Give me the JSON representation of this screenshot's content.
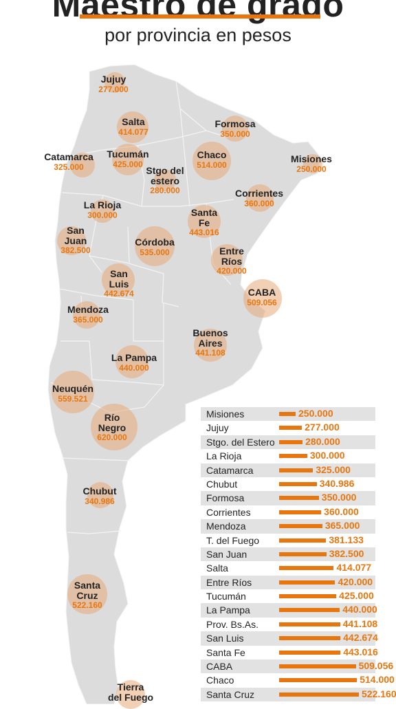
{
  "header": {
    "title": "Maestro de grado",
    "subtitle": "por provincia en pesos"
  },
  "colors": {
    "accent": "#e8760f",
    "bubble": "#e8aa78",
    "map": "#dcdcdc",
    "row_stripe": "#e2e2e2"
  },
  "chart_data": [
    {
      "type": "bubble-map",
      "unit": "pesos",
      "provinces": [
        {
          "name": "Jujuy",
          "value": 277000,
          "label": "277.000"
        },
        {
          "name": "Salta",
          "value": 414077,
          "label": "414.077"
        },
        {
          "name": "Formosa",
          "value": 350000,
          "label": "350.000"
        },
        {
          "name": "Catamarca",
          "value": 325000,
          "label": "325.000"
        },
        {
          "name": "Tucumán",
          "value": 425000,
          "label": "425.000"
        },
        {
          "name": "Chaco",
          "value": 514000,
          "label": "514.000"
        },
        {
          "name": "Misiones",
          "value": 250000,
          "label": "250.000"
        },
        {
          "name": "Stgo del estero",
          "value": 280000,
          "label": "280.000"
        },
        {
          "name": "Corrientes",
          "value": 360000,
          "label": "360.000"
        },
        {
          "name": "La Rioja",
          "value": 300000,
          "label": "300.000"
        },
        {
          "name": "Santa Fe",
          "value": 443016,
          "label": "443.016"
        },
        {
          "name": "San Juan",
          "value": 382500,
          "label": "382.500"
        },
        {
          "name": "Córdoba",
          "value": 535000,
          "label": "535.000"
        },
        {
          "name": "Entre Ríos",
          "value": 420000,
          "label": "420.000"
        },
        {
          "name": "San Luis",
          "value": 442674,
          "label": "442.674"
        },
        {
          "name": "CABA",
          "value": 509056,
          "label": "509.056"
        },
        {
          "name": "Mendoza",
          "value": 365000,
          "label": "365.000"
        },
        {
          "name": "Buenos Aires",
          "value": 441108,
          "label": "441.108"
        },
        {
          "name": "La Pampa",
          "value": 440000,
          "label": "440.000"
        },
        {
          "name": "Neuquén",
          "value": 559521,
          "label": "559.521"
        },
        {
          "name": "Río Negro",
          "value": 620000,
          "label": "620.000"
        },
        {
          "name": "Chubut",
          "value": 340986,
          "label": "340.986"
        },
        {
          "name": "Santa Cruz",
          "value": 522160,
          "label": "522.160"
        },
        {
          "name": "Tierra del Fuego",
          "value": 381133,
          "label": ""
        }
      ]
    },
    {
      "type": "bar",
      "orientation": "horizontal",
      "categories": [
        "Misiones",
        "Jujuy",
        "Stgo. del Estero",
        "La Rioja",
        "Catamarca",
        "Chubut",
        "Formosa",
        "Corrientes",
        "Mendoza",
        "T. del Fuego",
        "San Juan",
        "Salta",
        "Entre Ríos",
        "Tucumán",
        "La Pampa",
        "Prov. Bs.As.",
        "San Luis",
        "Santa Fe",
        "CABA",
        "Chaco",
        "Santa Cruz"
      ],
      "values": [
        250000,
        277000,
        280000,
        300000,
        325000,
        340986,
        350000,
        360000,
        365000,
        381133,
        382500,
        414077,
        420000,
        425000,
        440000,
        441108,
        442674,
        443016,
        509056,
        514000,
        522160
      ],
      "labels": [
        "250.000",
        "277.000",
        "280.000",
        "300.000",
        "325.000",
        "340.986",
        "350.000",
        "360.000",
        "365.000",
        "381.133",
        "382.500",
        "414.077",
        "420.000",
        "425.000",
        "440.000",
        "441.108",
        "442.674",
        "443.016",
        "509.056",
        "514.000",
        "522.160"
      ]
    }
  ]
}
